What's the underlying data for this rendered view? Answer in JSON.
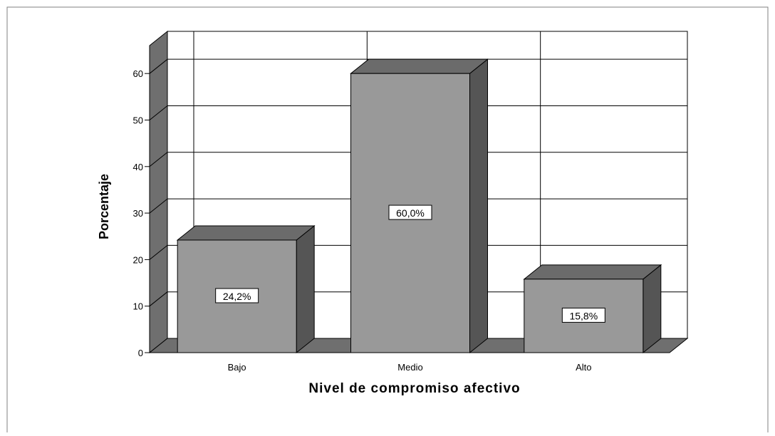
{
  "chart_data": {
    "type": "bar",
    "style": "3d",
    "categories": [
      "Bajo",
      "Medio",
      "Alto"
    ],
    "values": [
      24.2,
      60.0,
      15.8
    ],
    "data_labels": [
      "24,2%",
      "60,0%",
      "15,8%"
    ],
    "title": "",
    "xlabel": "Nivel de compromiso afectivo",
    "ylabel": "Porcentaje",
    "ylim": [
      0,
      66
    ],
    "yticks": [
      0,
      10,
      20,
      30,
      40,
      50,
      60
    ],
    "grid": true,
    "legend": "none"
  },
  "colors": {
    "bar_front": "#999999",
    "bar_top": "#6b6b6b",
    "bar_side": "#555555",
    "wall": "#6f6f6f",
    "grid": "#000000",
    "background": "#ffffff",
    "frame_border": "#808080"
  }
}
